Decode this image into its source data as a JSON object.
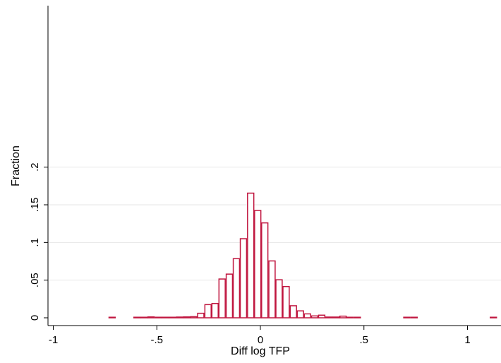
{
  "chart_data": {
    "type": "bar",
    "subtype": "histogram",
    "title": "",
    "xlabel": "Diff log TFP",
    "ylabel": "Fraction",
    "xlim": [
      -1.04,
      1.15
    ],
    "ylim": [
      0,
      0.2
    ],
    "xticks": [
      {
        "value": -1,
        "label": "-1"
      },
      {
        "value": -0.5,
        "label": "-.5"
      },
      {
        "value": 0,
        "label": "0"
      },
      {
        "value": 0.5,
        "label": ".5"
      },
      {
        "value": 1,
        "label": "1"
      }
    ],
    "yticks": [
      {
        "value": 0,
        "label": "0"
      },
      {
        "value": 0.05,
        "label": ".05"
      },
      {
        "value": 0.1,
        "label": ".1"
      },
      {
        "value": 0.15,
        "label": ".15"
      },
      {
        "value": 0.2,
        "label": ".2"
      }
    ],
    "grid": "horizontal",
    "bar_color": "#c0163f",
    "bin_width": 0.0343,
    "bins": [
      {
        "x0": -0.733,
        "value": 0.0005
      },
      {
        "x0": -0.613,
        "value": 0.0003
      },
      {
        "x0": -0.579,
        "value": 0.0003
      },
      {
        "x0": -0.545,
        "value": 0.0012
      },
      {
        "x0": -0.51,
        "value": 0.0004
      },
      {
        "x0": -0.476,
        "value": 0.0007
      },
      {
        "x0": -0.442,
        "value": 0.0005
      },
      {
        "x0": -0.407,
        "value": 0.001
      },
      {
        "x0": -0.373,
        "value": 0.0012
      },
      {
        "x0": -0.339,
        "value": 0.0015
      },
      {
        "x0": -0.305,
        "value": 0.006
      },
      {
        "x0": -0.27,
        "value": 0.0175
      },
      {
        "x0": -0.236,
        "value": 0.019
      },
      {
        "x0": -0.202,
        "value": 0.0515
      },
      {
        "x0": -0.167,
        "value": 0.058
      },
      {
        "x0": -0.133,
        "value": 0.0785
      },
      {
        "x0": -0.099,
        "value": 0.105
      },
      {
        "x0": -0.064,
        "value": 0.1655
      },
      {
        "x0": -0.03,
        "value": 0.1425
      },
      {
        "x0": 0.004,
        "value": 0.126
      },
      {
        "x0": 0.039,
        "value": 0.0755
      },
      {
        "x0": 0.073,
        "value": 0.0505
      },
      {
        "x0": 0.107,
        "value": 0.0415
      },
      {
        "x0": 0.142,
        "value": 0.016
      },
      {
        "x0": 0.176,
        "value": 0.0092
      },
      {
        "x0": 0.21,
        "value": 0.0052
      },
      {
        "x0": 0.245,
        "value": 0.0025
      },
      {
        "x0": 0.279,
        "value": 0.0035
      },
      {
        "x0": 0.313,
        "value": 0.001
      },
      {
        "x0": 0.348,
        "value": 0.001
      },
      {
        "x0": 0.382,
        "value": 0.0022
      },
      {
        "x0": 0.416,
        "value": 0.0006
      },
      {
        "x0": 0.451,
        "value": 0.0005
      },
      {
        "x0": 0.69,
        "value": 0.0005
      },
      {
        "x0": 0.725,
        "value": 0.0005
      },
      {
        "x0": 1.108,
        "value": 0.0006
      }
    ]
  }
}
